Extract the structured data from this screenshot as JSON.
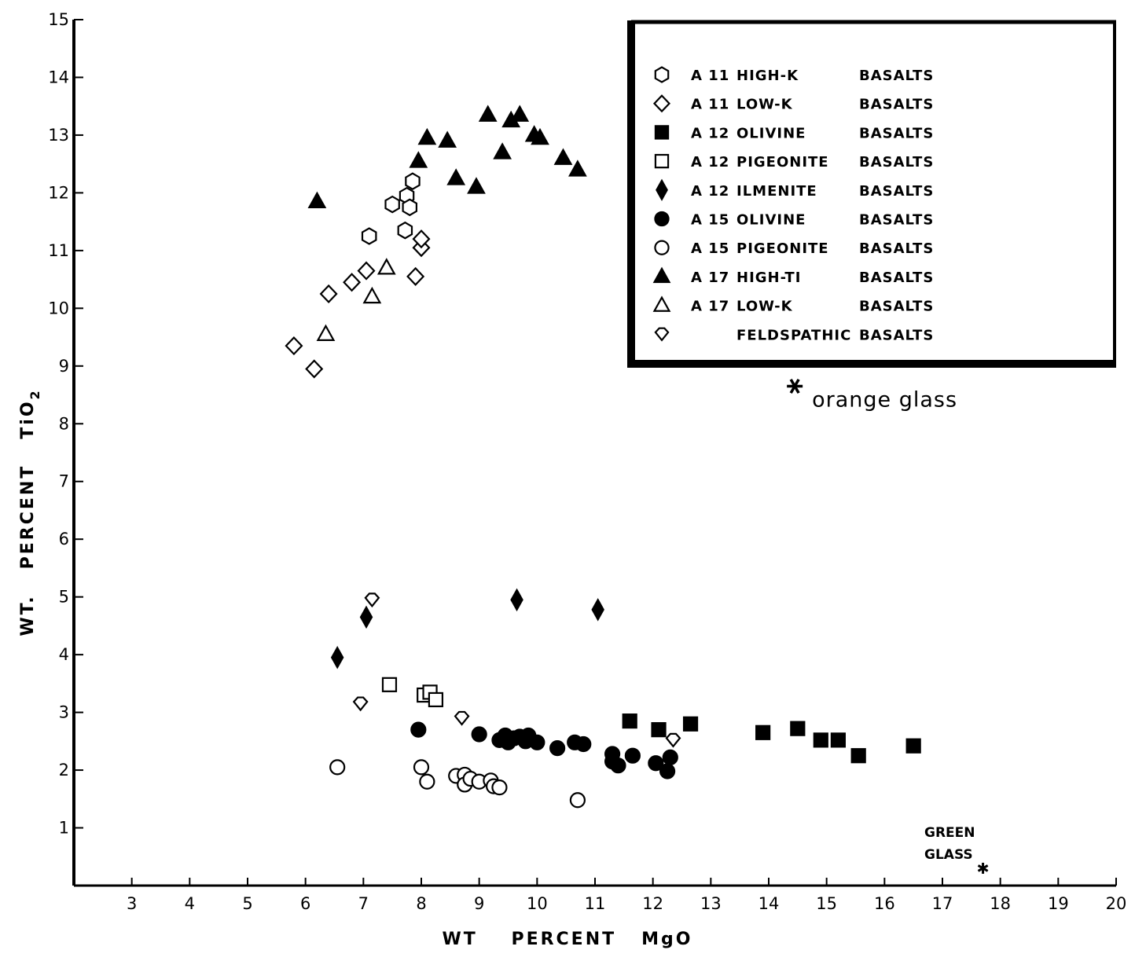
{
  "chart_data": {
    "type": "scatter",
    "xlabel": "WT    PERCENT   MgO",
    "ylabel": "WT.   PERCENT   TiO",
    "ylabel_sub": "2",
    "xlim": [
      2,
      20
    ],
    "ylim": [
      0,
      15
    ],
    "x_ticks": [
      3,
      4,
      5,
      6,
      7,
      8,
      9,
      10,
      11,
      12,
      13,
      14,
      15,
      16,
      17,
      18,
      19,
      20
    ],
    "y_ticks": [
      1,
      2,
      3,
      4,
      5,
      6,
      7,
      8,
      9,
      10,
      11,
      12,
      13,
      14,
      15
    ],
    "grid": false,
    "legend_position": "top-right",
    "series": [
      {
        "name": "A 11 HIGH-K BASALTS",
        "mission": "A 11",
        "rock": "HIGH-K",
        "kind": "BASALTS",
        "marker": "hexagon-open",
        "points": [
          [
            7.1,
            11.25
          ],
          [
            7.5,
            11.8
          ],
          [
            7.75,
            11.95
          ],
          [
            7.8,
            11.75
          ],
          [
            7.85,
            12.2
          ],
          [
            7.72,
            11.35
          ]
        ]
      },
      {
        "name": "A 11 LOW-K BASALTS",
        "mission": "A 11",
        "rock": "LOW-K",
        "kind": "BASALTS",
        "marker": "diamond-open",
        "points": [
          [
            5.8,
            9.35
          ],
          [
            6.15,
            8.95
          ],
          [
            6.4,
            10.25
          ],
          [
            6.8,
            10.45
          ],
          [
            7.05,
            10.65
          ],
          [
            7.9,
            10.55
          ],
          [
            8.0,
            11.05
          ],
          [
            8.0,
            11.2
          ]
        ]
      },
      {
        "name": "A 12 OLIVINE BASALTS",
        "mission": "A 12",
        "rock": "OLIVINE",
        "kind": "BASALTS",
        "marker": "square-filled",
        "points": [
          [
            11.6,
            2.85
          ],
          [
            12.1,
            2.7
          ],
          [
            12.65,
            2.8
          ],
          [
            13.9,
            2.65
          ],
          [
            14.5,
            2.72
          ],
          [
            14.9,
            2.52
          ],
          [
            15.2,
            2.52
          ],
          [
            15.55,
            2.25
          ],
          [
            16.5,
            2.42
          ]
        ]
      },
      {
        "name": "A 12 PIGEONITE BASALTS",
        "mission": "A 12",
        "rock": "PIGEONITE",
        "kind": "BASALTS",
        "marker": "square-open",
        "points": [
          [
            7.45,
            3.48
          ],
          [
            8.05,
            3.3
          ],
          [
            8.15,
            3.35
          ],
          [
            8.25,
            3.22
          ]
        ]
      },
      {
        "name": "A 12 ILMENITE BASALTS",
        "mission": "A 12",
        "rock": "ILMENITE",
        "kind": "BASALTS",
        "marker": "diamond-filled",
        "points": [
          [
            6.55,
            3.95
          ],
          [
            7.05,
            4.65
          ],
          [
            9.65,
            4.95
          ],
          [
            11.05,
            4.78
          ]
        ]
      },
      {
        "name": "A 15 OLIVINE BASALTS",
        "mission": "A 15",
        "rock": "OLIVINE",
        "kind": "BASALTS",
        "marker": "circle-filled",
        "points": [
          [
            7.95,
            2.7
          ],
          [
            9.0,
            2.62
          ],
          [
            9.35,
            2.52
          ],
          [
            9.45,
            2.6
          ],
          [
            9.5,
            2.48
          ],
          [
            9.6,
            2.55
          ],
          [
            9.7,
            2.58
          ],
          [
            9.8,
            2.5
          ],
          [
            9.85,
            2.6
          ],
          [
            10.0,
            2.48
          ],
          [
            10.35,
            2.38
          ],
          [
            10.65,
            2.48
          ],
          [
            10.8,
            2.45
          ],
          [
            11.3,
            2.15
          ],
          [
            11.3,
            2.28
          ],
          [
            11.4,
            2.08
          ],
          [
            11.65,
            2.25
          ],
          [
            12.05,
            2.12
          ],
          [
            12.25,
            1.98
          ],
          [
            12.3,
            2.22
          ]
        ]
      },
      {
        "name": "A 15 PIGEONITE BASALTS",
        "mission": "A 15",
        "rock": "PIGEONITE",
        "kind": "BASALTS",
        "marker": "circle-open",
        "points": [
          [
            6.55,
            2.05
          ],
          [
            8.0,
            2.05
          ],
          [
            8.1,
            1.8
          ],
          [
            8.6,
            1.9
          ],
          [
            8.75,
            1.92
          ],
          [
            8.75,
            1.75
          ],
          [
            8.85,
            1.85
          ],
          [
            9.0,
            1.8
          ],
          [
            9.2,
            1.82
          ],
          [
            9.25,
            1.72
          ],
          [
            9.35,
            1.7
          ],
          [
            10.7,
            1.48
          ]
        ]
      },
      {
        "name": "A 17 HIGH-TI BASALTS",
        "mission": "A 17",
        "rock": "HIGH-TI",
        "kind": "BASALTS",
        "marker": "triangle-filled",
        "points": [
          [
            6.2,
            11.85
          ],
          [
            7.95,
            12.55
          ],
          [
            8.1,
            12.95
          ],
          [
            8.45,
            12.9
          ],
          [
            8.6,
            12.25
          ],
          [
            8.95,
            12.1
          ],
          [
            9.15,
            13.35
          ],
          [
            9.4,
            12.7
          ],
          [
            9.55,
            13.25
          ],
          [
            9.7,
            13.35
          ],
          [
            9.95,
            13.0
          ],
          [
            10.05,
            12.95
          ],
          [
            10.45,
            12.6
          ],
          [
            10.7,
            12.4
          ]
        ]
      },
      {
        "name": "A 17 LOW-K BASALTS",
        "mission": "A 17",
        "rock": "LOW-K",
        "kind": "BASALTS",
        "marker": "triangle-open",
        "points": [
          [
            6.35,
            9.55
          ],
          [
            7.15,
            10.2
          ],
          [
            7.4,
            10.7
          ]
        ]
      },
      {
        "name": "FELDSPATHIC BASALTS",
        "mission": "",
        "rock": "FELDSPATHIC",
        "kind": "BASALTS",
        "marker": "feldspathic-open",
        "points": [
          [
            7.15,
            4.95
          ],
          [
            6.95,
            3.15
          ],
          [
            8.7,
            2.9
          ],
          [
            12.35,
            2.52
          ]
        ]
      }
    ],
    "annotations": [
      {
        "text": "orange glass",
        "x": 14.45,
        "y": 8.65,
        "marker": "star"
      },
      {
        "text_line1": "GREEN",
        "text_line2": "GLASS",
        "x": 17.7,
        "y": 0.3,
        "marker": "asterisk"
      }
    ]
  }
}
